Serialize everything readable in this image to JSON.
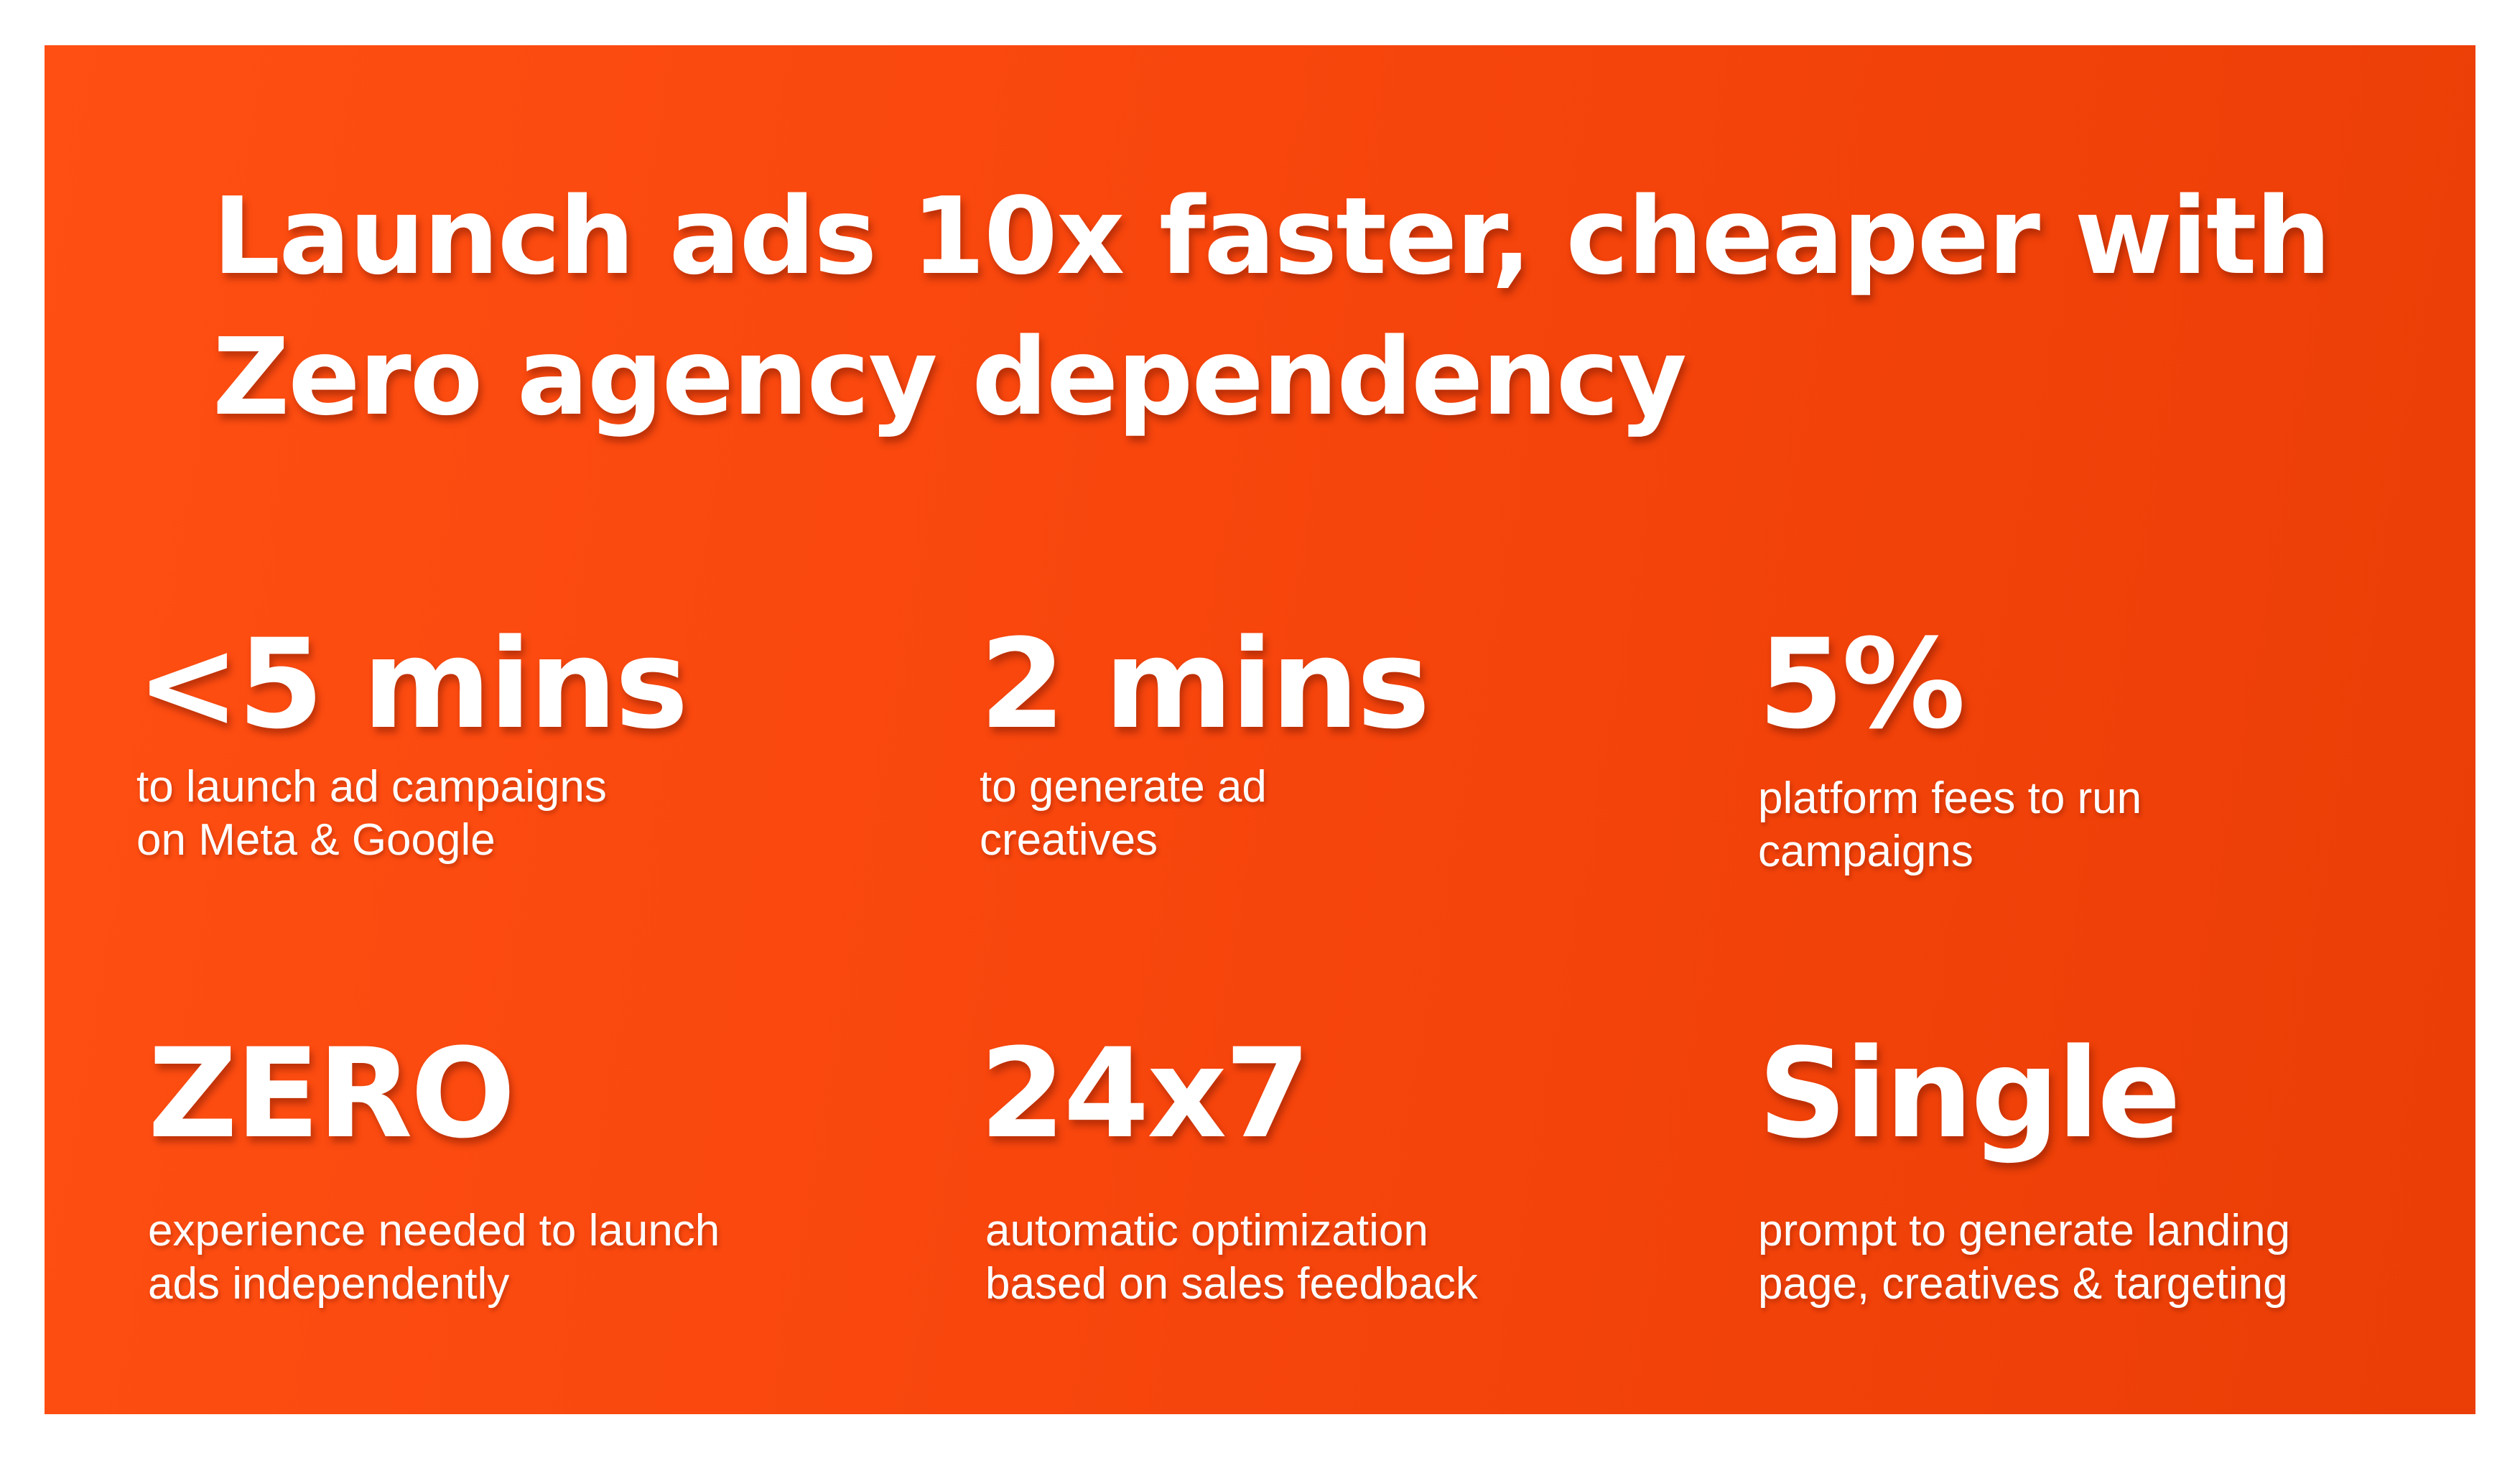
{
  "headline": {
    "line1": "Launch ads 10x faster, cheaper with",
    "line2": "Zero agency dependency"
  },
  "stats": [
    {
      "value": "<5 mins",
      "desc1": "to launch ad campaigns",
      "desc2": "on Meta & Google"
    },
    {
      "value": "2 mins",
      "desc1": "to generate ad",
      "desc2": "creatives"
    },
    {
      "value": "5%",
      "desc1": "platform fees to run",
      "desc2": "campaigns"
    },
    {
      "value": "ZERO",
      "desc1": "experience needed to launch",
      "desc2": "ads independently"
    },
    {
      "value": "24x7",
      "desc1": "automatic optimization",
      "desc2": "based on sales feedback"
    },
    {
      "value": "Single",
      "desc1": "prompt to generate landing",
      "desc2": "page, creatives & targeting"
    }
  ],
  "colors": {
    "background": "#f8460d",
    "text": "#ffffff"
  }
}
